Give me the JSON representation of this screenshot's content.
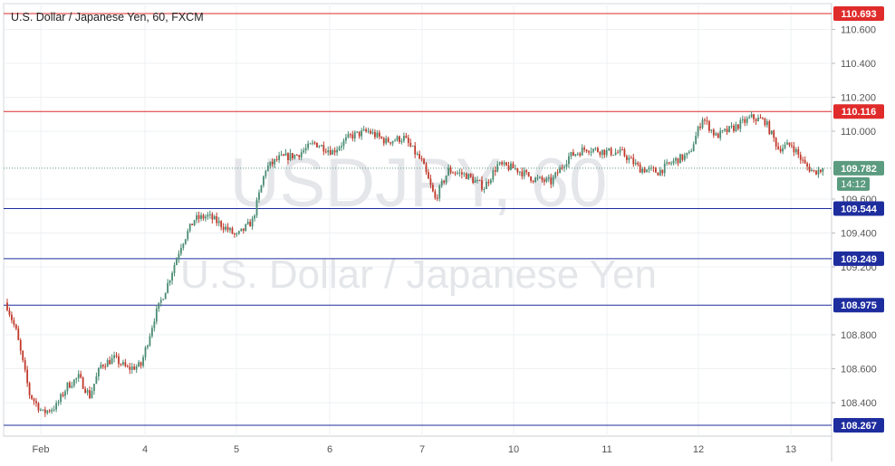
{
  "title": "U.S. Dollar / Japanese Yen, 60, FXCM",
  "watermark": {
    "symbol": "USDJPY, 60",
    "name": "U.S. Dollar / Japanese Yen"
  },
  "countdown": "14:12",
  "colors": {
    "up": "#4a8c73",
    "down": "#c0392b",
    "resistance": "#e02b2b",
    "support": "#1e2d9e",
    "current": "#5b9b7f",
    "grid": "#eef0f3",
    "axis_text": "#555555"
  },
  "chart_data": {
    "type": "candlestick",
    "title": "U.S. Dollar / Japanese Yen, 60, FXCM",
    "x_ticks": [
      "Feb",
      "4",
      "5",
      "6",
      "7",
      "10",
      "11",
      "12",
      "13"
    ],
    "y_ticks": [
      "110.600",
      "110.400",
      "110.200",
      "110.000",
      "109.600",
      "109.400",
      "109.200",
      "108.800",
      "108.600",
      "108.400"
    ],
    "ylim": [
      108.23,
      110.74
    ],
    "current_price": "109.782",
    "resistance_levels": [
      "110.693",
      "110.116"
    ],
    "support_levels": [
      "109.544",
      "109.249",
      "108.975",
      "108.267"
    ],
    "anchors": [
      {
        "t": 0,
        "p": 108.97
      },
      {
        "t": 4,
        "p": 108.82
      },
      {
        "t": 10,
        "p": 108.45
      },
      {
        "t": 16,
        "p": 108.34
      },
      {
        "t": 22,
        "p": 108.38
      },
      {
        "t": 27,
        "p": 108.5
      },
      {
        "t": 32,
        "p": 108.55
      },
      {
        "t": 37,
        "p": 108.44
      },
      {
        "t": 42,
        "p": 108.62
      },
      {
        "t": 48,
        "p": 108.66
      },
      {
        "t": 54,
        "p": 108.6
      },
      {
        "t": 60,
        "p": 108.62
      },
      {
        "t": 66,
        "p": 108.9
      },
      {
        "t": 72,
        "p": 109.1
      },
      {
        "t": 78,
        "p": 109.33
      },
      {
        "t": 84,
        "p": 109.48
      },
      {
        "t": 90,
        "p": 109.5
      },
      {
        "t": 96,
        "p": 109.45
      },
      {
        "t": 103,
        "p": 109.38
      },
      {
        "t": 110,
        "p": 109.47
      },
      {
        "t": 116,
        "p": 109.78
      },
      {
        "t": 122,
        "p": 109.84
      },
      {
        "t": 130,
        "p": 109.86
      },
      {
        "t": 138,
        "p": 109.93
      },
      {
        "t": 146,
        "p": 109.88
      },
      {
        "t": 154,
        "p": 109.97
      },
      {
        "t": 162,
        "p": 110.0
      },
      {
        "t": 170,
        "p": 109.94
      },
      {
        "t": 178,
        "p": 109.96
      },
      {
        "t": 186,
        "p": 109.82
      },
      {
        "t": 192,
        "p": 109.6
      },
      {
        "t": 198,
        "p": 109.77
      },
      {
        "t": 206,
        "p": 109.74
      },
      {
        "t": 214,
        "p": 109.67
      },
      {
        "t": 220,
        "p": 109.8
      },
      {
        "t": 228,
        "p": 109.78
      },
      {
        "t": 236,
        "p": 109.72
      },
      {
        "t": 244,
        "p": 109.7
      },
      {
        "t": 252,
        "p": 109.85
      },
      {
        "t": 260,
        "p": 109.9
      },
      {
        "t": 268,
        "p": 109.88
      },
      {
        "t": 276,
        "p": 109.87
      },
      {
        "t": 284,
        "p": 109.78
      },
      {
        "t": 292,
        "p": 109.76
      },
      {
        "t": 300,
        "p": 109.83
      },
      {
        "t": 306,
        "p": 109.86
      },
      {
        "t": 312,
        "p": 110.08
      },
      {
        "t": 318,
        "p": 109.97
      },
      {
        "t": 326,
        "p": 110.02
      },
      {
        "t": 334,
        "p": 110.08
      },
      {
        "t": 340,
        "p": 110.06
      },
      {
        "t": 346,
        "p": 109.9
      },
      {
        "t": 352,
        "p": 109.92
      },
      {
        "t": 358,
        "p": 109.8
      },
      {
        "t": 362,
        "p": 109.76
      },
      {
        "t": 366,
        "p": 109.78
      }
    ]
  }
}
